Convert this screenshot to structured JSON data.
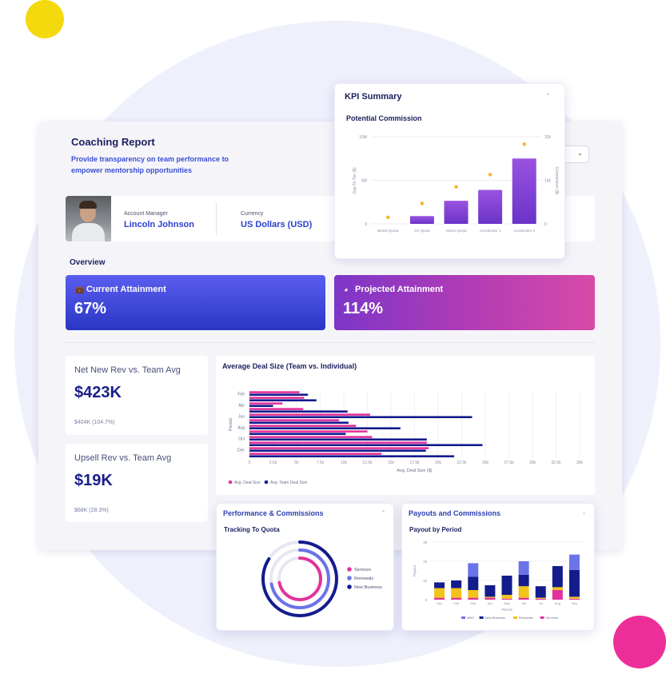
{
  "header": {
    "title": "Coaching Report",
    "description": "Provide transparency on team performance to empower mentorship opportunities"
  },
  "profile": {
    "manager_label": "Account Manager",
    "manager_name": "Lincoln Johnson",
    "currency_label": "Currency",
    "currency_value": "US Dollars (USD)"
  },
  "overview": {
    "title": "Overview",
    "current": {
      "label": "Current Attainment",
      "value": "67%"
    },
    "projected": {
      "label": "Projected Attainment",
      "value": "114%"
    }
  },
  "stats": [
    {
      "title": "Net New Rev vs. Team Avg",
      "value": "$423K",
      "sub": "$404K (104.7%)"
    },
    {
      "title": "Upsell Rev vs. Team Avg",
      "value": "$19K",
      "sub": "$68K (28.3%)"
    }
  ],
  "deal_card": {
    "title": "Average Deal Size (Team vs. Individual)"
  },
  "kpi": {
    "title": "KPI Summary",
    "subtitle": "Potential Commission"
  },
  "perf": {
    "title": "Performance & Commissions",
    "subtitle": "Tracking To Quota"
  },
  "payout": {
    "title": "Payouts and Commissions",
    "subtitle": "Payout by Period"
  },
  "colors": {
    "navy": "#131c8c",
    "blue": "#6b73e8",
    "pink": "#e2339a",
    "yellow": "#f2c31b",
    "orange_dot": "#f4b623",
    "purple_bar": "#8a4bd6"
  },
  "chart_data": [
    {
      "id": "potential_commission",
      "type": "bar",
      "categories": [
        "Below Quota",
        "On Quota",
        "Above Quota",
        "Accelerator 1",
        "Accelerator 2"
      ],
      "series": [
        {
          "values": [
            0,
            1.8,
            5.3,
            7.8,
            15.0
          ],
          "axis": "left",
          "kind": "bar"
        },
        {
          "values": [
            1.5,
            4.7,
            8.5,
            11.3,
            18.3
          ],
          "axis": "right",
          "kind": "scatter"
        }
      ],
      "ylabel": "Gap To Tier ($)",
      "y2label": "Commission ($)",
      "y_ticks": [
        "0",
        "5M",
        "10M"
      ],
      "y2_ticks": [
        "0",
        "16k",
        "32k"
      ],
      "ylim": [
        0,
        20
      ],
      "y2lim": [
        0,
        20
      ]
    },
    {
      "id": "avg_deal_size",
      "type": "bar",
      "orientation": "horizontal",
      "categories": [
        "Feb",
        "",
        "Apr",
        "",
        "Jun",
        "",
        "Aug",
        "",
        "Oct",
        "",
        "Dec",
        ""
      ],
      "series": [
        {
          "name": "Avg. Deal Size",
          "values": [
            5300,
            5800,
            3500,
            5700,
            12800,
            9500,
            11300,
            12500,
            13000,
            18800,
            19000,
            14000
          ]
        },
        {
          "name": "Avg. Team Deal Size",
          "values": [
            6200,
            7100,
            2500,
            10400,
            23600,
            10500,
            16000,
            10200,
            18800,
            24700,
            18700,
            21700
          ]
        }
      ],
      "xlabel": "Avg. Deal Size ($)",
      "ylabel": "Period",
      "x_ticks": [
        "0",
        "2.5k",
        "5k",
        "7.5k",
        "10k",
        "12.5k",
        "15k",
        "17.5k",
        "20k",
        "22.5k",
        "25k",
        "27.5k",
        "30k",
        "32.5k",
        "35k"
      ],
      "xlim": [
        0,
        35000
      ],
      "legend": "bottom-left"
    },
    {
      "id": "tracking_to_quota",
      "type": "pie",
      "style": "radial-rings",
      "series": [
        {
          "name": "Services",
          "value": 0.72
        },
        {
          "name": "Renewals",
          "value": 0.72
        },
        {
          "name": "New Business",
          "value": 0.84
        }
      ],
      "legend": "right"
    },
    {
      "id": "payout_by_period",
      "type": "bar",
      "stacked": true,
      "categories": [
        "Jan",
        "Feb",
        "Mar",
        "Apr",
        "May",
        "Jun",
        "Jul",
        "Aug",
        "Sep"
      ],
      "series": [
        {
          "name": "Services",
          "values": [
            0.1,
            0.1,
            0.1,
            0.1,
            0.05,
            0.1,
            0.05,
            0.5,
            0.05
          ]
        },
        {
          "name": "Renewals",
          "values": [
            0.5,
            0.5,
            0.4,
            0.05,
            0.2,
            0.6,
            0.05,
            0.15,
            0.1
          ]
        },
        {
          "name": "New Business",
          "values": [
            0.3,
            0.4,
            0.7,
            0.6,
            1.0,
            0.6,
            0.6,
            1.1,
            1.4
          ]
        },
        {
          "name": "MBO",
          "values": [
            0.0,
            0.0,
            0.7,
            0.0,
            0.0,
            0.7,
            0.0,
            0.0,
            0.8
          ]
        }
      ],
      "ylabel": "Payout",
      "xlabel": "Period",
      "y_ticks": [
        "0",
        "1k",
        "2k",
        "3k"
      ],
      "ylim": [
        0,
        3
      ],
      "legend": "bottom"
    }
  ]
}
